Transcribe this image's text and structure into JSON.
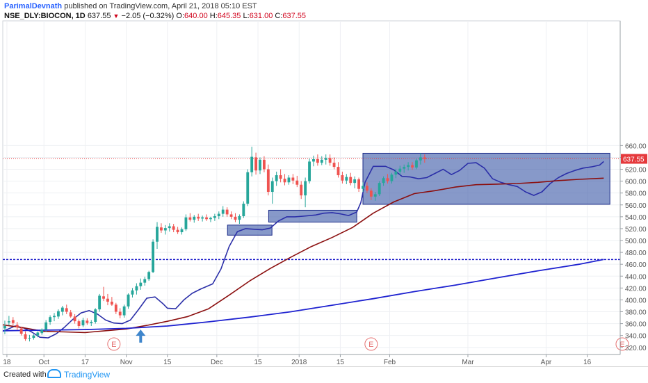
{
  "header": {
    "author": "ParimalDevnath",
    "published_text": "published on TradingView.com, April 21, 2018 05:10 EST",
    "symbol": "NSE_DLY:BIOCON, 1D",
    "last": "637.55",
    "change": "−2.05 (−0.32%)",
    "ohlc": [
      {
        "label": "O:",
        "value": "640.00"
      },
      {
        "label": "H:",
        "value": "645.35"
      },
      {
        "label": "L:",
        "value": "631.00"
      },
      {
        "label": "C:",
        "value": "637.55"
      }
    ]
  },
  "footer": {
    "created_with": "Created with",
    "brand": "TradingView"
  },
  "colors": {
    "up": "#26a69a",
    "down": "#ef5350",
    "fast_ma": "#2b2fa8",
    "mid_ma": "#8b0f0f",
    "slow_ma": "#1e22d0",
    "box_fill": "#3d5aa8",
    "hline": "#1212c8",
    "arrow": "#3f86cc",
    "price_label": "#e5393c"
  },
  "chart_data": {
    "type": "candlestick",
    "ylim": [
      308,
      870
    ],
    "yticks": [
      320,
      340,
      360,
      380,
      400,
      420,
      440,
      460,
      480,
      500,
      520,
      540,
      560,
      580,
      600,
      620,
      640,
      660
    ],
    "x_range": [
      0,
      150
    ],
    "xticks": [
      {
        "label": "18",
        "x": 1
      },
      {
        "label": "Oct",
        "x": 10
      },
      {
        "label": "17",
        "x": 20
      },
      {
        "label": "Nov",
        "x": 30
      },
      {
        "label": "15",
        "x": 40
      },
      {
        "label": "Dec",
        "x": 52
      },
      {
        "label": "15",
        "x": 62
      },
      {
        "label": "2018",
        "x": 72
      },
      {
        "label": "15",
        "x": 82
      },
      {
        "label": "Feb",
        "x": 94
      },
      {
        "label": "Mar",
        "x": 113
      },
      {
        "label": "Apr",
        "x": 132
      },
      {
        "label": "16",
        "x": 142
      }
    ],
    "current_price": {
      "value": 637.55,
      "label": "637.55"
    },
    "horizontal_line": 468,
    "boxes": [
      {
        "x0": 54.6,
        "x1": 65.4,
        "y0": 509,
        "y1": 526
      },
      {
        "x0": 64.6,
        "x1": 86.0,
        "y0": 531,
        "y1": 551
      },
      {
        "x0": 87.5,
        "x1": 147.5,
        "y0": 561,
        "y1": 647
      }
    ],
    "earnings_markers": [
      {
        "label": "E",
        "x": 27
      },
      {
        "label": "E",
        "x": 89.5
      },
      {
        "label": "E",
        "x": 150.5
      }
    ],
    "arrow_marker": {
      "x": 33.5,
      "tip": 350,
      "base": 328
    },
    "moving_averages": [
      {
        "key": "fast_ma",
        "width": 1.6,
        "points": [
          [
            0,
            347
          ],
          [
            3,
            356
          ],
          [
            5,
            353
          ],
          [
            7,
            346
          ],
          [
            9,
            337
          ],
          [
            11,
            336
          ],
          [
            13,
            343
          ],
          [
            15,
            354
          ],
          [
            17,
            367
          ],
          [
            19,
            378
          ],
          [
            21,
            382
          ],
          [
            23,
            376
          ],
          [
            25,
            366
          ],
          [
            27,
            361
          ],
          [
            29,
            360
          ],
          [
            31,
            366
          ],
          [
            33,
            384
          ],
          [
            35,
            403
          ],
          [
            37,
            405
          ],
          [
            39,
            393
          ],
          [
            40,
            386
          ],
          [
            42,
            385
          ],
          [
            44,
            400
          ],
          [
            46,
            411
          ],
          [
            48,
            418
          ],
          [
            51,
            427
          ],
          [
            53,
            452
          ],
          [
            55,
            490
          ],
          [
            57,
            515
          ],
          [
            59,
            520
          ],
          [
            61,
            519
          ],
          [
            63,
            518
          ],
          [
            65,
            521
          ],
          [
            67,
            533
          ],
          [
            69,
            540
          ],
          [
            71,
            540
          ],
          [
            73,
            541
          ],
          [
            76,
            543
          ],
          [
            78,
            546
          ],
          [
            80,
            547
          ],
          [
            82,
            545
          ],
          [
            84,
            542
          ],
          [
            86,
            548
          ],
          [
            87,
            564
          ],
          [
            88,
            598
          ],
          [
            90,
            625
          ],
          [
            93,
            625
          ],
          [
            95,
            619
          ],
          [
            97,
            608
          ],
          [
            99,
            607
          ],
          [
            101,
            604
          ],
          [
            103,
            606
          ],
          [
            105,
            613
          ],
          [
            107,
            620
          ],
          [
            109,
            611
          ],
          [
            111,
            618
          ],
          [
            113,
            630
          ],
          [
            115,
            631
          ],
          [
            117,
            622
          ],
          [
            119,
            604
          ],
          [
            121,
            598
          ],
          [
            123,
            594
          ],
          [
            125,
            591
          ],
          [
            127,
            582
          ],
          [
            129,
            576
          ],
          [
            131,
            582
          ],
          [
            133,
            596
          ],
          [
            135,
            606
          ],
          [
            137,
            613
          ],
          [
            139,
            618
          ],
          [
            141,
            622
          ],
          [
            143,
            624
          ],
          [
            145,
            627
          ],
          [
            146,
            633
          ]
        ]
      },
      {
        "key": "mid_ma",
        "width": 1.6,
        "points": [
          [
            0,
            358
          ],
          [
            5,
            353
          ],
          [
            10,
            347
          ],
          [
            15,
            346
          ],
          [
            20,
            345
          ],
          [
            25,
            348
          ],
          [
            30,
            351
          ],
          [
            35,
            357
          ],
          [
            40,
            364
          ],
          [
            45,
            372
          ],
          [
            50,
            385
          ],
          [
            55,
            408
          ],
          [
            60,
            432
          ],
          [
            65,
            453
          ],
          [
            70,
            472
          ],
          [
            75,
            490
          ],
          [
            80,
            505
          ],
          [
            85,
            522
          ],
          [
            90,
            546
          ],
          [
            95,
            565
          ],
          [
            100,
            579
          ],
          [
            105,
            584
          ],
          [
            110,
            590
          ],
          [
            115,
            594
          ],
          [
            120,
            595
          ],
          [
            125,
            596
          ],
          [
            130,
            598
          ],
          [
            135,
            601
          ],
          [
            140,
            603
          ],
          [
            146,
            605
          ]
        ]
      },
      {
        "key": "slow_ma",
        "width": 1.8,
        "points": [
          [
            0,
            348
          ],
          [
            10,
            349
          ],
          [
            20,
            350
          ],
          [
            30,
            352
          ],
          [
            40,
            356
          ],
          [
            50,
            363
          ],
          [
            60,
            371
          ],
          [
            70,
            380
          ],
          [
            80,
            391
          ],
          [
            90,
            402
          ],
          [
            100,
            414
          ],
          [
            110,
            425
          ],
          [
            120,
            437
          ],
          [
            130,
            449
          ],
          [
            140,
            460
          ],
          [
            146,
            468
          ]
        ]
      }
    ],
    "candles": [
      {
        "o": 352,
        "h": 365,
        "l": 342,
        "c": 356
      },
      {
        "o": 362,
        "h": 373,
        "l": 357,
        "c": 364
      },
      {
        "o": 366,
        "h": 371,
        "l": 357,
        "c": 361
      },
      {
        "o": 358,
        "h": 363,
        "l": 349,
        "c": 354
      },
      {
        "o": 352,
        "h": 355,
        "l": 340,
        "c": 343
      },
      {
        "o": 342,
        "h": 347,
        "l": 331,
        "c": 334
      },
      {
        "o": 335,
        "h": 341,
        "l": 330,
        "c": 336
      },
      {
        "o": 336,
        "h": 342,
        "l": 333,
        "c": 340
      },
      {
        "o": 340,
        "h": 347,
        "l": 337,
        "c": 345
      },
      {
        "o": 344,
        "h": 352,
        "l": 341,
        "c": 350
      },
      {
        "o": 350,
        "h": 366,
        "l": 346,
        "c": 362
      },
      {
        "o": 363,
        "h": 374,
        "l": 358,
        "c": 371
      },
      {
        "o": 371,
        "h": 378,
        "l": 364,
        "c": 373
      },
      {
        "o": 372,
        "h": 384,
        "l": 368,
        "c": 381
      },
      {
        "o": 380,
        "h": 390,
        "l": 374,
        "c": 387
      },
      {
        "o": 386,
        "h": 392,
        "l": 376,
        "c": 380
      },
      {
        "o": 379,
        "h": 383,
        "l": 370,
        "c": 372
      },
      {
        "o": 372,
        "h": 376,
        "l": 360,
        "c": 364
      },
      {
        "o": 364,
        "h": 367,
        "l": 352,
        "c": 356
      },
      {
        "o": 357,
        "h": 370,
        "l": 354,
        "c": 366
      },
      {
        "o": 365,
        "h": 369,
        "l": 358,
        "c": 361
      },
      {
        "o": 361,
        "h": 366,
        "l": 356,
        "c": 363
      },
      {
        "o": 363,
        "h": 386,
        "l": 360,
        "c": 384
      },
      {
        "o": 384,
        "h": 410,
        "l": 380,
        "c": 407
      },
      {
        "o": 406,
        "h": 422,
        "l": 398,
        "c": 402
      },
      {
        "o": 402,
        "h": 410,
        "l": 391,
        "c": 397
      },
      {
        "o": 397,
        "h": 405,
        "l": 390,
        "c": 392
      },
      {
        "o": 392,
        "h": 395,
        "l": 376,
        "c": 380
      },
      {
        "o": 380,
        "h": 386,
        "l": 369,
        "c": 374
      },
      {
        "o": 374,
        "h": 392,
        "l": 370,
        "c": 389
      },
      {
        "o": 389,
        "h": 411,
        "l": 385,
        "c": 409
      },
      {
        "o": 409,
        "h": 420,
        "l": 404,
        "c": 416
      },
      {
        "o": 416,
        "h": 428,
        "l": 409,
        "c": 423
      },
      {
        "o": 423,
        "h": 436,
        "l": 417,
        "c": 429
      },
      {
        "o": 429,
        "h": 439,
        "l": 424,
        "c": 435
      },
      {
        "o": 435,
        "h": 449,
        "l": 432,
        "c": 447
      },
      {
        "o": 447,
        "h": 502,
        "l": 445,
        "c": 498
      },
      {
        "o": 498,
        "h": 531,
        "l": 486,
        "c": 523
      },
      {
        "o": 522,
        "h": 529,
        "l": 513,
        "c": 517
      },
      {
        "o": 517,
        "h": 526,
        "l": 510,
        "c": 521
      },
      {
        "o": 521,
        "h": 529,
        "l": 515,
        "c": 524
      },
      {
        "o": 524,
        "h": 528,
        "l": 514,
        "c": 518
      },
      {
        "o": 518,
        "h": 523,
        "l": 511,
        "c": 514
      },
      {
        "o": 514,
        "h": 522,
        "l": 510,
        "c": 519
      },
      {
        "o": 519,
        "h": 544,
        "l": 516,
        "c": 539
      },
      {
        "o": 539,
        "h": 546,
        "l": 532,
        "c": 535
      },
      {
        "o": 535,
        "h": 543,
        "l": 530,
        "c": 540
      },
      {
        "o": 540,
        "h": 545,
        "l": 533,
        "c": 537
      },
      {
        "o": 537,
        "h": 542,
        "l": 532,
        "c": 539
      },
      {
        "o": 539,
        "h": 544,
        "l": 533,
        "c": 536
      },
      {
        "o": 536,
        "h": 540,
        "l": 531,
        "c": 538
      },
      {
        "o": 538,
        "h": 545,
        "l": 533,
        "c": 541
      },
      {
        "o": 541,
        "h": 549,
        "l": 536,
        "c": 545
      },
      {
        "o": 545,
        "h": 558,
        "l": 540,
        "c": 552
      },
      {
        "o": 552,
        "h": 556,
        "l": 540,
        "c": 544
      },
      {
        "o": 544,
        "h": 549,
        "l": 536,
        "c": 540
      },
      {
        "o": 540,
        "h": 546,
        "l": 531,
        "c": 535
      },
      {
        "o": 535,
        "h": 544,
        "l": 528,
        "c": 541
      },
      {
        "o": 541,
        "h": 566,
        "l": 538,
        "c": 562
      },
      {
        "o": 562,
        "h": 620,
        "l": 558,
        "c": 615
      },
      {
        "o": 615,
        "h": 658,
        "l": 608,
        "c": 641
      },
      {
        "o": 640,
        "h": 648,
        "l": 611,
        "c": 618
      },
      {
        "o": 618,
        "h": 640,
        "l": 612,
        "c": 636
      },
      {
        "o": 636,
        "h": 642,
        "l": 615,
        "c": 620
      },
      {
        "o": 620,
        "h": 628,
        "l": 576,
        "c": 582
      },
      {
        "o": 582,
        "h": 606,
        "l": 562,
        "c": 600
      },
      {
        "o": 600,
        "h": 616,
        "l": 592,
        "c": 610
      },
      {
        "o": 610,
        "h": 620,
        "l": 598,
        "c": 604
      },
      {
        "o": 604,
        "h": 612,
        "l": 593,
        "c": 598
      },
      {
        "o": 598,
        "h": 610,
        "l": 594,
        "c": 606
      },
      {
        "o": 606,
        "h": 612,
        "l": 595,
        "c": 601
      },
      {
        "o": 601,
        "h": 609,
        "l": 590,
        "c": 594
      },
      {
        "o": 594,
        "h": 600,
        "l": 570,
        "c": 576
      },
      {
        "o": 576,
        "h": 606,
        "l": 556,
        "c": 600
      },
      {
        "o": 600,
        "h": 638,
        "l": 596,
        "c": 633
      },
      {
        "o": 633,
        "h": 643,
        "l": 625,
        "c": 637
      },
      {
        "o": 637,
        "h": 645,
        "l": 626,
        "c": 631
      },
      {
        "o": 631,
        "h": 642,
        "l": 627,
        "c": 636
      },
      {
        "o": 636,
        "h": 645,
        "l": 628,
        "c": 639
      },
      {
        "o": 639,
        "h": 645,
        "l": 626,
        "c": 631
      },
      {
        "o": 631,
        "h": 640,
        "l": 620,
        "c": 624
      },
      {
        "o": 624,
        "h": 632,
        "l": 606,
        "c": 610
      },
      {
        "o": 610,
        "h": 616,
        "l": 596,
        "c": 601
      },
      {
        "o": 601,
        "h": 612,
        "l": 595,
        "c": 607
      },
      {
        "o": 607,
        "h": 614,
        "l": 593,
        "c": 597
      },
      {
        "o": 597,
        "h": 608,
        "l": 588,
        "c": 603
      },
      {
        "o": 603,
        "h": 606,
        "l": 582,
        "c": 587
      },
      {
        "o": 587,
        "h": 598,
        "l": 582,
        "c": 592
      },
      {
        "o": 592,
        "h": 598,
        "l": 580,
        "c": 584
      },
      {
        "o": 584,
        "h": 588,
        "l": 568,
        "c": 574
      },
      {
        "o": 574,
        "h": 582,
        "l": 567,
        "c": 578
      },
      {
        "o": 578,
        "h": 600,
        "l": 575,
        "c": 597
      },
      {
        "o": 597,
        "h": 608,
        "l": 592,
        "c": 605
      },
      {
        "o": 605,
        "h": 612,
        "l": 596,
        "c": 600
      },
      {
        "o": 600,
        "h": 614,
        "l": 596,
        "c": 611
      },
      {
        "o": 611,
        "h": 621,
        "l": 605,
        "c": 616
      },
      {
        "o": 616,
        "h": 626,
        "l": 611,
        "c": 621
      },
      {
        "o": 621,
        "h": 628,
        "l": 614,
        "c": 624
      },
      {
        "o": 624,
        "h": 632,
        "l": 618,
        "c": 627
      },
      {
        "o": 627,
        "h": 632,
        "l": 619,
        "c": 623
      },
      {
        "o": 623,
        "h": 638,
        "l": 620,
        "c": 635
      },
      {
        "o": 635,
        "h": 647,
        "l": 628,
        "c": 640
      },
      {
        "o": 640,
        "h": 645,
        "l": 631,
        "c": 637
      }
    ]
  }
}
